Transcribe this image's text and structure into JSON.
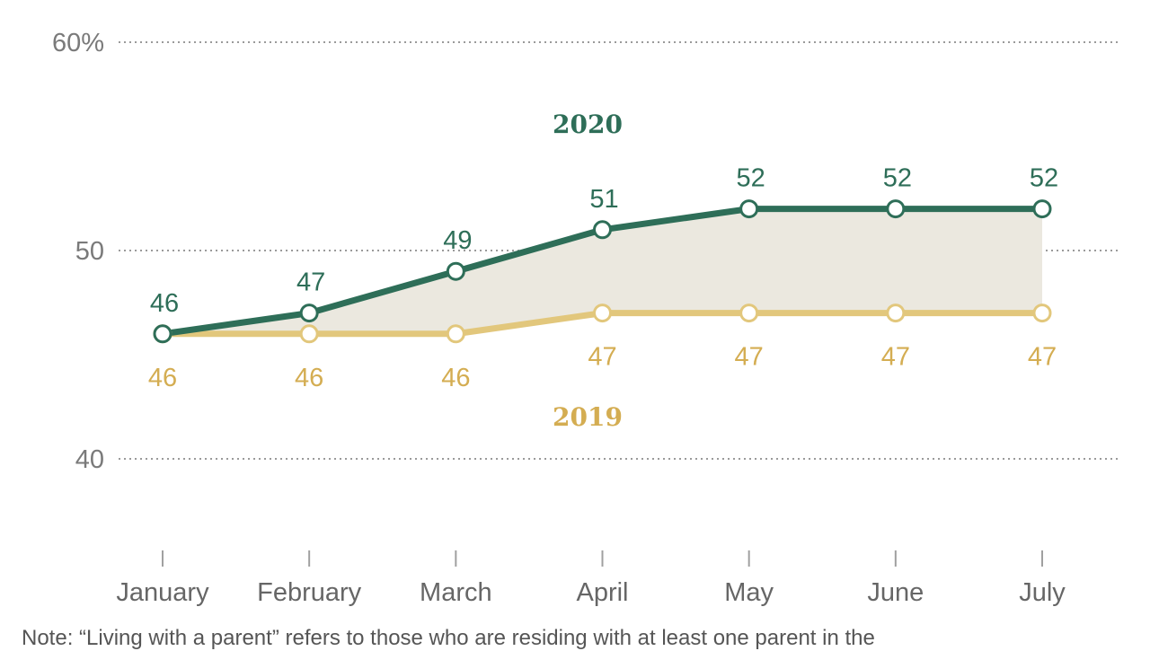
{
  "chart_data": {
    "type": "line",
    "categories": [
      "January",
      "February",
      "March",
      "April",
      "May",
      "June",
      "July"
    ],
    "series": [
      {
        "name": "2020",
        "values": [
          46,
          47,
          49,
          51,
          52,
          52,
          52
        ],
        "color": "#2e6e58"
      },
      {
        "name": "2019",
        "values": [
          46,
          46,
          46,
          47,
          47,
          47,
          47
        ],
        "color": "#e2c77c"
      }
    ],
    "ylim": [
      40,
      60
    ],
    "yticks": [
      "40",
      "50",
      "60%"
    ],
    "grid": true,
    "fill_between_color": "#ebe8df",
    "label_colors": {
      "2020": "#2e6e58",
      "2019": "#d4ad52"
    }
  },
  "note": "Note: “Living with a parent” refers to those who are residing with at least one parent in the"
}
